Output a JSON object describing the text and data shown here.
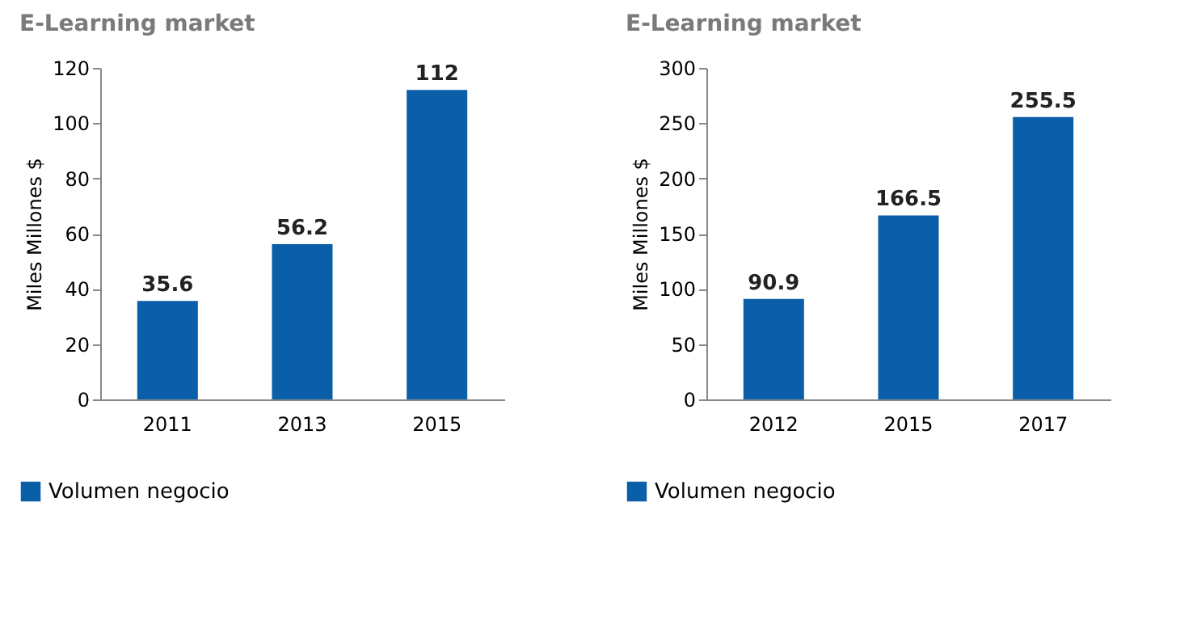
{
  "chart_data": [
    {
      "type": "bar",
      "title": "E-Learning market",
      "ylabel": "Miles Millones $",
      "categories": [
        "2011",
        "2013",
        "2015"
      ],
      "series": [
        {
          "name": "Volumen negocio",
          "color": "#0b5ea8",
          "values": [
            35.6,
            56.2,
            112
          ]
        }
      ],
      "ylim": [
        0,
        120
      ],
      "yticks": [
        0,
        20,
        40,
        60,
        80,
        100,
        120
      ],
      "data_labels": true,
      "grid": false,
      "legend": "bottom left"
    },
    {
      "type": "bar",
      "title": "E-Learning market",
      "ylabel": "Miles Millones $",
      "categories": [
        "2012",
        "2015",
        "2017"
      ],
      "series": [
        {
          "name": "Volumen negocio",
          "color": "#0b5ea8",
          "values": [
            90.9,
            166.5,
            255.5
          ]
        }
      ],
      "ylim": [
        0,
        300
      ],
      "yticks": [
        0,
        50,
        100,
        150,
        200,
        250,
        300
      ],
      "data_labels": true,
      "grid": false,
      "legend": "bottom left"
    }
  ]
}
